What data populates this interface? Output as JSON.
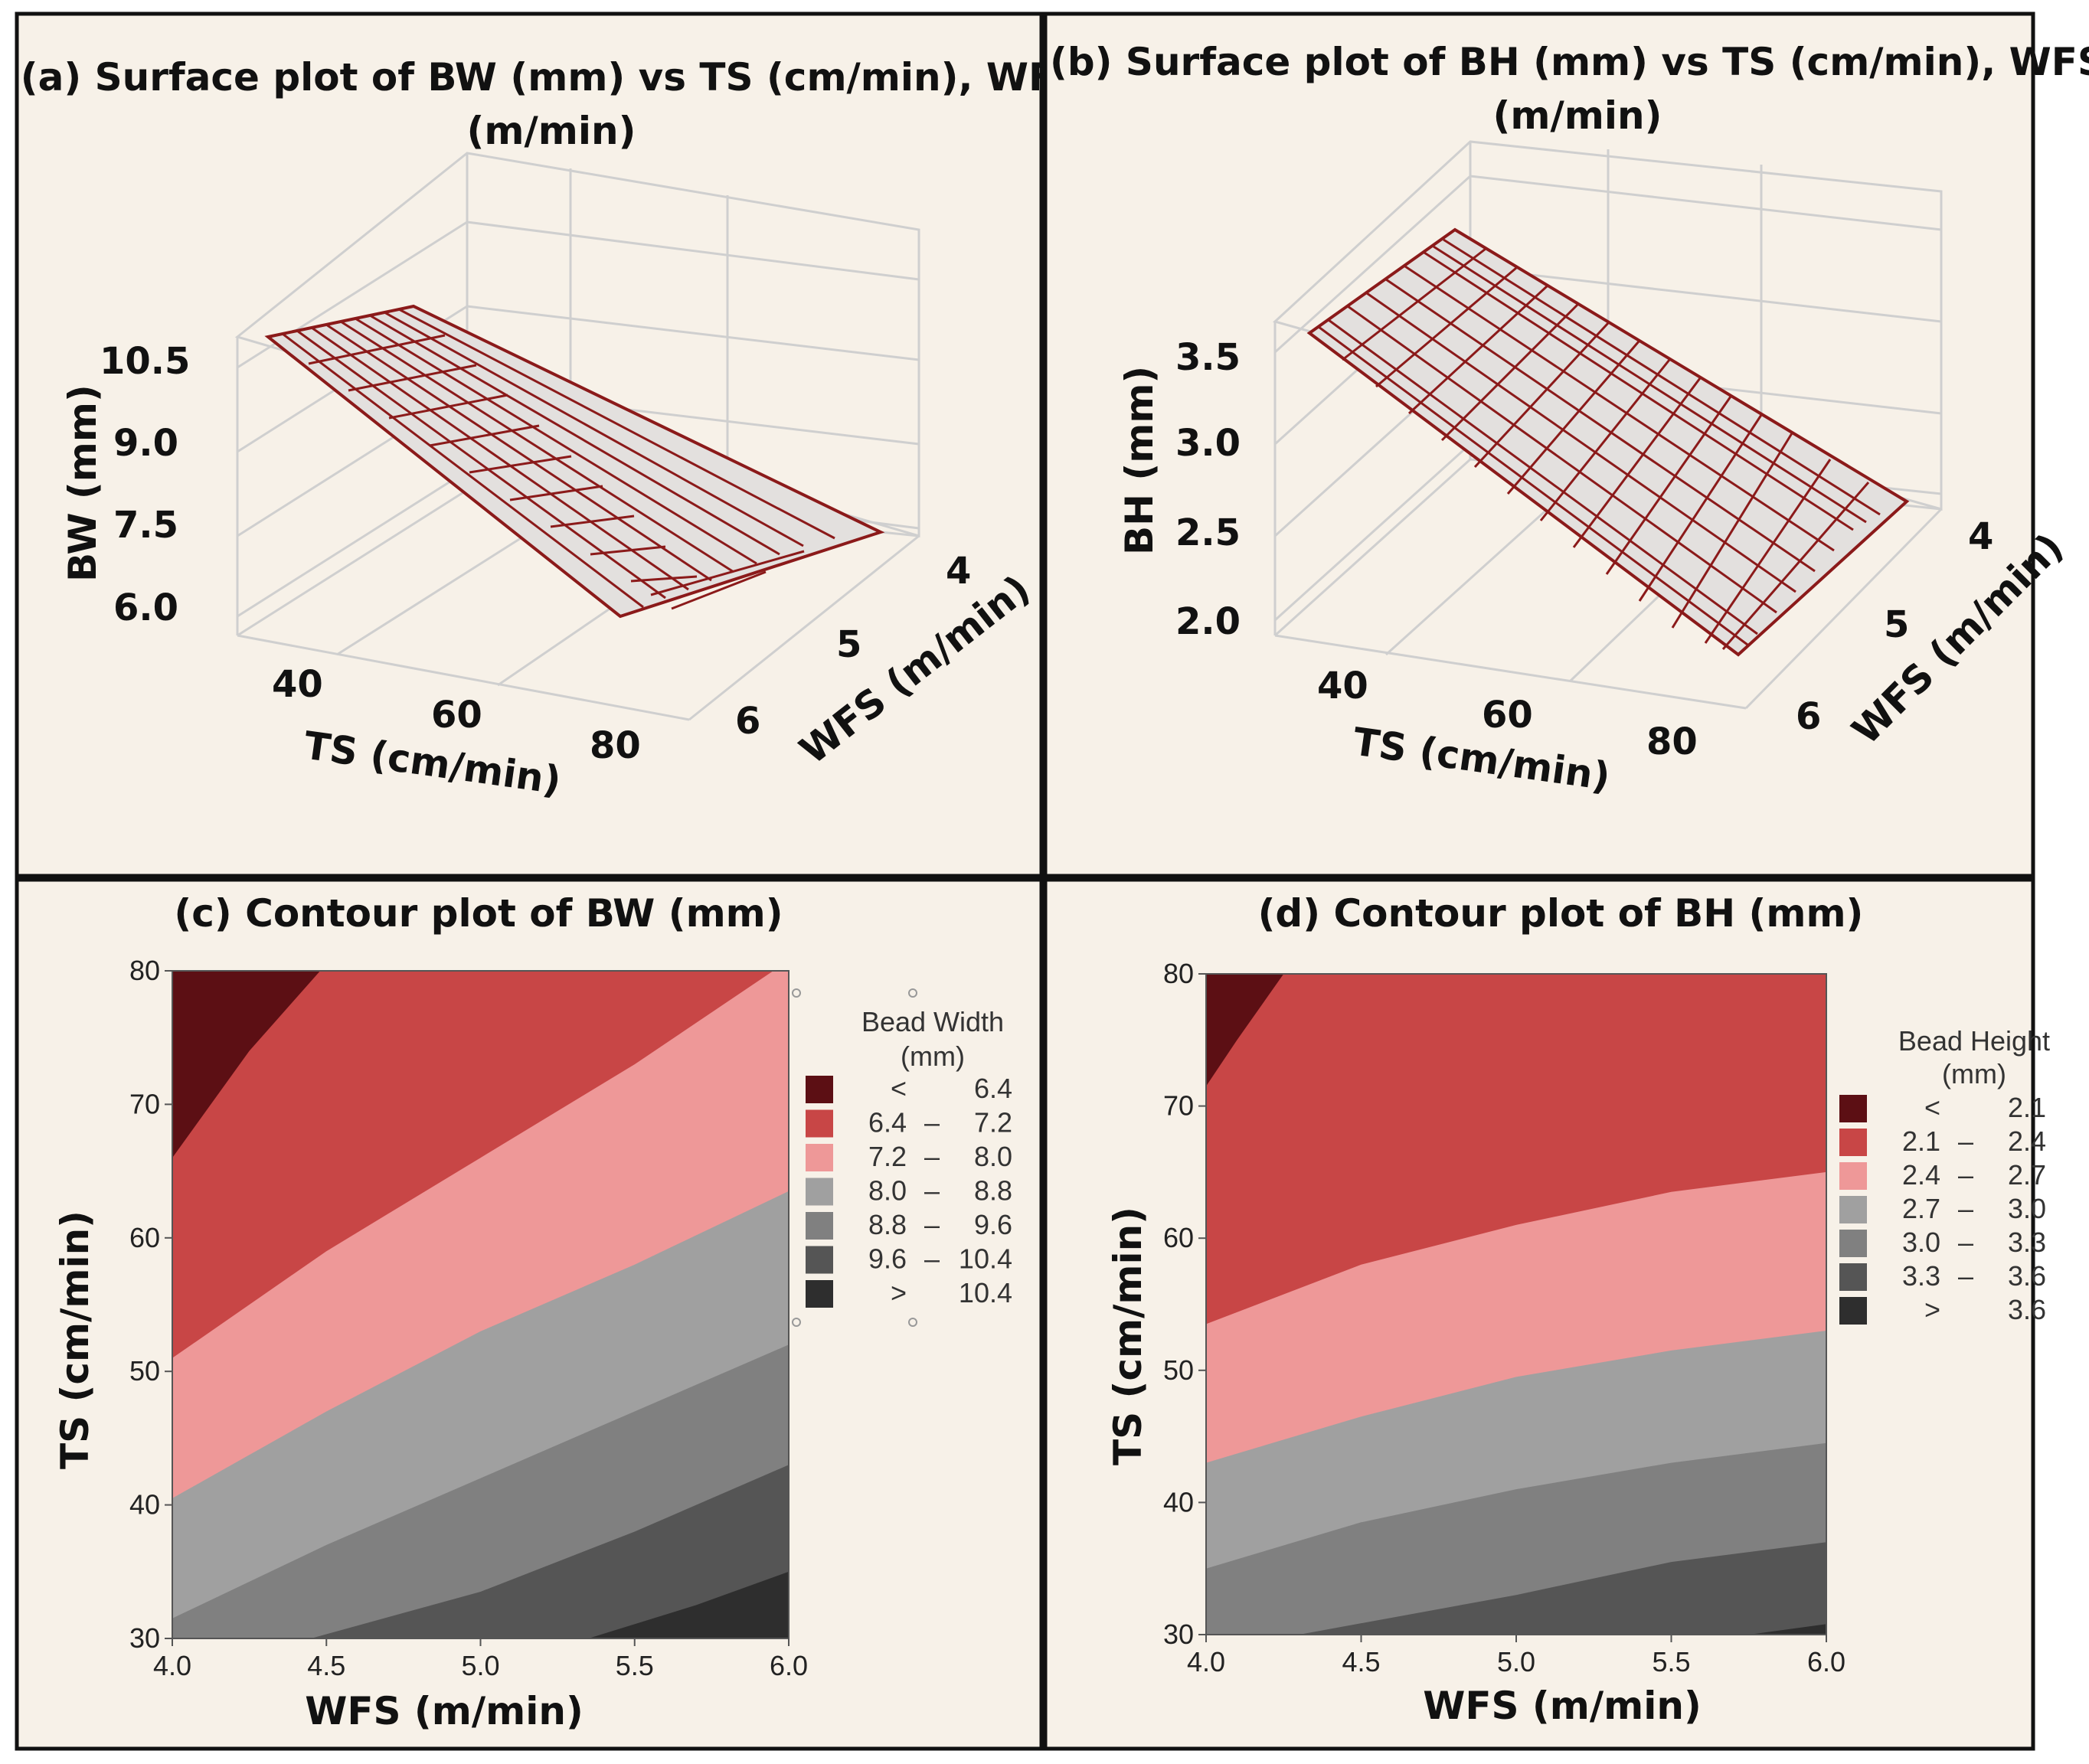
{
  "panels": {
    "a": {
      "title_line1": "(a) Surface plot of BW (mm) vs TS (cm/min), WFS",
      "title_line2": "(m/min)",
      "zlabel": "BW (mm)",
      "xlabel": "TS (cm/min)",
      "ylabel": "WFS (m/min)",
      "z_ticks": [
        "10.5",
        "9.0",
        "7.5",
        "6.0"
      ],
      "x_ticks": [
        "40",
        "60",
        "80"
      ],
      "y_ticks": [
        "4",
        "5",
        "6"
      ]
    },
    "b": {
      "title_line1": "(b) Surface plot of BH (mm) vs TS (cm/min), WFS",
      "title_line2": "(m/min)",
      "zlabel": "BH (mm)",
      "xlabel": "TS (cm/min)",
      "ylabel": "WFS (m/min)",
      "z_ticks": [
        "3.5",
        "3.0",
        "2.5",
        "2.0"
      ],
      "x_ticks": [
        "40",
        "60",
        "80"
      ],
      "y_ticks": [
        "4",
        "5",
        "6"
      ]
    },
    "c": {
      "title": "(c) Contour plot of BW (mm)",
      "xlabel": "WFS (m/min)",
      "ylabel": "TS (cm/min)",
      "x_ticks": [
        "4.0",
        "4.5",
        "5.0",
        "5.5",
        "6.0"
      ],
      "y_ticks": [
        "80",
        "70",
        "60",
        "50",
        "40",
        "30"
      ],
      "legend_title_1": "Bead Width",
      "legend_title_2": "(mm)",
      "legend": [
        {
          "lo": "<",
          "dash": "",
          "hi": "6.4",
          "color": "#5c0f14"
        },
        {
          "lo": "6.4",
          "dash": "–",
          "hi": "7.2",
          "color": "#c84646"
        },
        {
          "lo": "7.2",
          "dash": "–",
          "hi": "8.0",
          "color": "#ee9898"
        },
        {
          "lo": "8.0",
          "dash": "–",
          "hi": "8.8",
          "color": "#a0a0a0"
        },
        {
          "lo": "8.8",
          "dash": "–",
          "hi": "9.6",
          "color": "#808080"
        },
        {
          "lo": "9.6",
          "dash": "–",
          "hi": "10.4",
          "color": "#555555"
        },
        {
          "lo": ">",
          "dash": "",
          "hi": "10.4",
          "color": "#2e2e2e"
        }
      ]
    },
    "d": {
      "title": "(d) Contour plot of BH (mm)",
      "xlabel": "WFS (m/min)",
      "ylabel": "TS (cm/min)",
      "x_ticks": [
        "4.0",
        "4.5",
        "5.0",
        "5.5",
        "6.0"
      ],
      "y_ticks": [
        "80",
        "70",
        "60",
        "50",
        "40",
        "30"
      ],
      "legend_title_1": "Bead Height",
      "legend_title_2": "(mm)",
      "legend": [
        {
          "lo": "<",
          "dash": "",
          "hi": "2.1",
          "color": "#5c0f14"
        },
        {
          "lo": "2.1",
          "dash": "–",
          "hi": "2.4",
          "color": "#c84646"
        },
        {
          "lo": "2.4",
          "dash": "–",
          "hi": "2.7",
          "color": "#ee9898"
        },
        {
          "lo": "2.7",
          "dash": "–",
          "hi": "3.0",
          "color": "#a0a0a0"
        },
        {
          "lo": "3.0",
          "dash": "–",
          "hi": "3.3",
          "color": "#808080"
        },
        {
          "lo": "3.3",
          "dash": "–",
          "hi": "3.6",
          "color": "#555555"
        },
        {
          "lo": ">",
          "dash": "",
          "hi": "3.6",
          "color": "#2e2e2e"
        }
      ]
    }
  },
  "chart_data": [
    {
      "type": "surface",
      "title": "(a) Surface plot of BW (mm) vs TS (cm/min), WFS (m/min)",
      "x": "TS (cm/min)",
      "y": "WFS (m/min)",
      "z": "BW (mm)",
      "xlim": [
        30,
        80
      ],
      "ylim": [
        4,
        6
      ],
      "zlim": [
        6.0,
        10.5
      ],
      "approx_corners": {
        "TS30_WFS6": 10.8,
        "TS30_WFS4": 9.4,
        "TS80_WFS6": 7.0,
        "TS80_WFS4": 6.2
      }
    },
    {
      "type": "surface",
      "title": "(b) Surface plot of BH (mm) vs TS (cm/min), WFS (m/min)",
      "x": "TS (cm/min)",
      "y": "WFS (m/min)",
      "z": "BH (mm)",
      "xlim": [
        30,
        80
      ],
      "ylim": [
        4,
        6
      ],
      "zlim": [
        2.0,
        3.5
      ],
      "approx_corners": {
        "TS30_WFS6": 3.6,
        "TS30_WFS4": 3.9,
        "TS80_WFS6": 2.0,
        "TS80_WFS4": 2.1
      }
    },
    {
      "type": "contour",
      "title": "(c) Contour plot of BW (mm)",
      "xlabel": "WFS (m/min)",
      "ylabel": "TS (cm/min)",
      "xlim": [
        4.0,
        6.0
      ],
      "ylim": [
        30,
        80
      ],
      "levels": [
        6.4,
        7.2,
        8.0,
        8.8,
        9.6,
        10.4
      ],
      "boundaries": [
        {
          "level": 6.4,
          "points": [
            [
              4.0,
              66
            ],
            [
              4.25,
              74
            ],
            [
              4.48,
              80
            ]
          ]
        },
        {
          "level": 7.2,
          "points": [
            [
              4.0,
              51
            ],
            [
              4.5,
              59
            ],
            [
              5.0,
              66
            ],
            [
              5.5,
              73
            ],
            [
              5.95,
              80
            ]
          ]
        },
        {
          "level": 8.0,
          "points": [
            [
              4.0,
              40.5
            ],
            [
              4.5,
              47
            ],
            [
              5.0,
              53
            ],
            [
              5.5,
              58
            ],
            [
              6.0,
              63.5
            ]
          ]
        },
        {
          "level": 8.8,
          "points": [
            [
              4.0,
              31.5
            ],
            [
              4.5,
              37
            ],
            [
              5.0,
              42
            ],
            [
              5.5,
              47
            ],
            [
              6.0,
              52
            ]
          ]
        },
        {
          "level": 9.6,
          "points": [
            [
              4.45,
              30
            ],
            [
              5.0,
              33.5
            ],
            [
              5.5,
              38
            ],
            [
              6.0,
              43
            ]
          ]
        },
        {
          "level": 10.4,
          "points": [
            [
              5.35,
              30
            ],
            [
              5.7,
              32.5
            ],
            [
              6.0,
              35
            ]
          ]
        }
      ]
    },
    {
      "type": "contour",
      "title": "(d) Contour plot of BH (mm)",
      "xlabel": "WFS (m/min)",
      "ylabel": "TS (cm/min)",
      "xlim": [
        4.0,
        6.0
      ],
      "ylim": [
        30,
        80
      ],
      "levels": [
        2.1,
        2.4,
        2.7,
        3.0,
        3.3,
        3.6
      ],
      "boundaries": [
        {
          "level": 2.1,
          "points": [
            [
              4.0,
              71.5
            ],
            [
              4.1,
              75
            ],
            [
              4.25,
              80
            ]
          ]
        },
        {
          "level": 2.4,
          "points": [
            [
              4.0,
              53.5
            ],
            [
              4.5,
              58
            ],
            [
              5.0,
              61
            ],
            [
              5.5,
              63.5
            ],
            [
              6.0,
              65
            ]
          ]
        },
        {
          "level": 2.7,
          "points": [
            [
              4.0,
              43
            ],
            [
              4.5,
              46.5
            ],
            [
              5.0,
              49.5
            ],
            [
              5.5,
              51.5
            ],
            [
              6.0,
              53
            ]
          ]
        },
        {
          "level": 3.0,
          "points": [
            [
              4.0,
              35
            ],
            [
              4.5,
              38.5
            ],
            [
              5.0,
              41
            ],
            [
              5.5,
              43
            ],
            [
              6.0,
              44.5
            ]
          ]
        },
        {
          "level": 3.3,
          "points": [
            [
              4.3,
              30
            ],
            [
              5.0,
              33
            ],
            [
              5.5,
              35.5
            ],
            [
              6.0,
              37
            ]
          ]
        },
        {
          "level": 3.6,
          "points": [
            [
              5.75,
              30
            ],
            [
              6.0,
              30.8
            ]
          ]
        }
      ]
    }
  ]
}
